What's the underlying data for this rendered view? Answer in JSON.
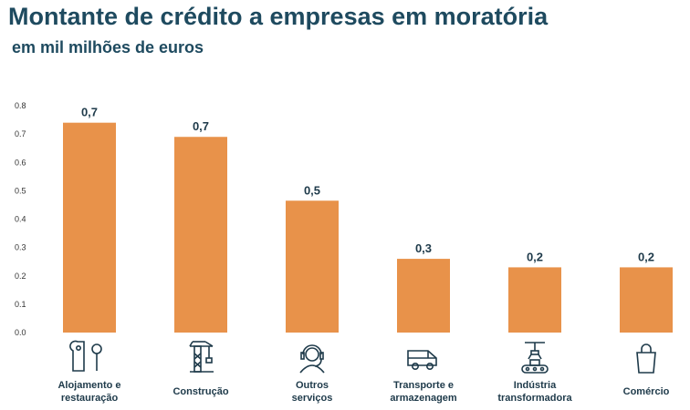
{
  "title": "Montante de crédito a empresas em moratória",
  "subtitle": "em mil milhões de euros",
  "colors": {
    "bar": "#e8924a",
    "text": "#1e3a4a",
    "title": "#1e4a5f"
  },
  "chart_data": {
    "type": "bar",
    "title": "Montante de crédito a empresas em moratória",
    "subtitle": "em mil milhões de euros",
    "categories": [
      [
        "Alojamento e",
        "restauração"
      ],
      [
        "Construção"
      ],
      [
        "Outros",
        "serviços"
      ],
      [
        "Transporte e",
        "armazenagem"
      ],
      [
        "Indústria",
        "transformadora"
      ],
      [
        "Comércio"
      ]
    ],
    "values": [
      0.74,
      0.69,
      0.465,
      0.26,
      0.23,
      0.23
    ],
    "data_labels": [
      "0,7",
      "0,7",
      "0,5",
      "0,3",
      "0,2",
      "0,2"
    ],
    "icons": [
      "door-hanger-spoon-icon",
      "crane-icon",
      "headset-person-icon",
      "van-icon",
      "factory-conveyor-icon",
      "shopping-bag-icon"
    ],
    "ylim": [
      0,
      0.8
    ],
    "yticks": [
      "0.0",
      "0.1",
      "0.2",
      "0.3",
      "0.4",
      "0.5",
      "0.6",
      "0.7",
      "0.8"
    ],
    "grid": false,
    "legend": "none"
  }
}
